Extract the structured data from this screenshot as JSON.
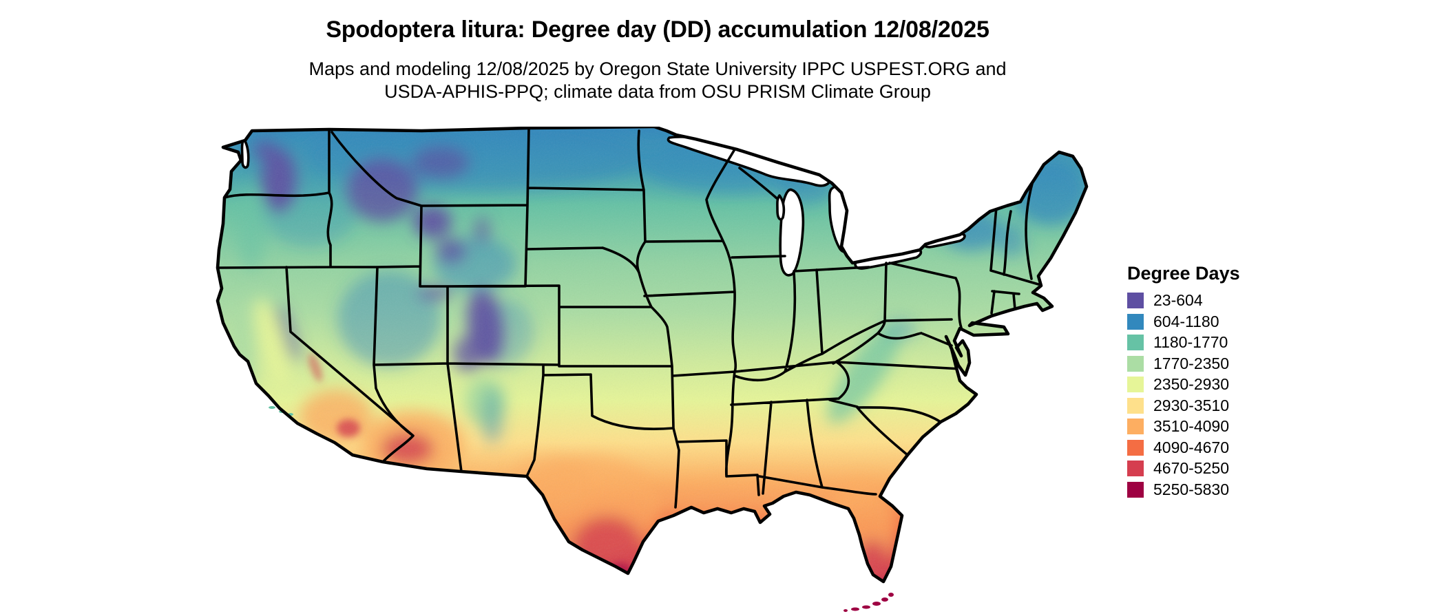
{
  "page": {
    "background": "#ffffff"
  },
  "header": {
    "title": "Spodoptera litura: Degree day (DD) accumulation 12/08/2025",
    "subtitle_line1": "Maps and modeling 12/08/2025 by Oregon State University IPPC USPEST.ORG and",
    "subtitle_line2": "USDA-APHIS-PPQ; climate data from OSU PRISM Climate Group"
  },
  "legend": {
    "title": "Degree Days",
    "items": [
      {
        "label": "23-604",
        "color": "#5e4fa2"
      },
      {
        "label": "604-1180",
        "color": "#3288bd"
      },
      {
        "label": "1180-1770",
        "color": "#66c2a5"
      },
      {
        "label": "1770-2350",
        "color": "#abdda4"
      },
      {
        "label": "2350-2930",
        "color": "#e6f598"
      },
      {
        "label": "2930-3510",
        "color": "#fee08b"
      },
      {
        "label": "3510-4090",
        "color": "#fdae61"
      },
      {
        "label": "4090-4670",
        "color": "#f46d43"
      },
      {
        "label": "4670-5250",
        "color": "#d53e4f"
      },
      {
        "label": "5250-5830",
        "color": "#9e0142"
      }
    ]
  },
  "chart_data": {
    "type": "choropleth-map",
    "title": "Spodoptera litura: Degree day (DD) accumulation 12/08/2025",
    "region": "Continental United States with state boundaries",
    "variable": "Degree day (DD) accumulation",
    "date": "12/08/2025",
    "legend_title": "Degree Days",
    "value_range": [
      23,
      5830
    ],
    "palette": "Spectral (reversed): purple = lowest DD, dark maroon = highest DD",
    "bins": [
      {
        "range": "23-604",
        "color": "#5e4fa2"
      },
      {
        "range": "604-1180",
        "color": "#3288bd"
      },
      {
        "range": "1180-1770",
        "color": "#66c2a5"
      },
      {
        "range": "1770-2350",
        "color": "#abdda4"
      },
      {
        "range": "2350-2930",
        "color": "#e6f598"
      },
      {
        "range": "2930-3510",
        "color": "#fee08b"
      },
      {
        "range": "3510-4090",
        "color": "#fdae61"
      },
      {
        "range": "4090-4670",
        "color": "#f46d43"
      },
      {
        "range": "4670-5250",
        "color": "#d53e4f"
      },
      {
        "range": "5250-5830",
        "color": "#9e0142"
      }
    ],
    "spatial_pattern": {
      "lowest_23_604": "High mountains: WA Cascades, central Idaho, SW Montana, Yellowstone/NW Wyoming, Colorado Rockies (purple patches)",
      "604_1180": "Northern tier: N Washington, Montana, N Dakota, N Minnesota, N Wisconsin, upper Michigan, Adirondacks, N Maine, Great Basin highs",
      "1180_2350": "Pacific Northwest valleys, northern plains, Midwest, New England, Appalachian chain (teal to light green)",
      "2350_3510": "Central plains (Kansas, Missouri), mid-Atlantic, California Central Valley (pale yellow)",
      "3510_4670": "Oklahoma, north/central Texas, Gulf coast states, Georgia, S Arizona deserts (orange)",
      "4670_5830": "Southern Arizona core, far south Texas, south Florida and the Keys (red to dark maroon)"
    }
  }
}
